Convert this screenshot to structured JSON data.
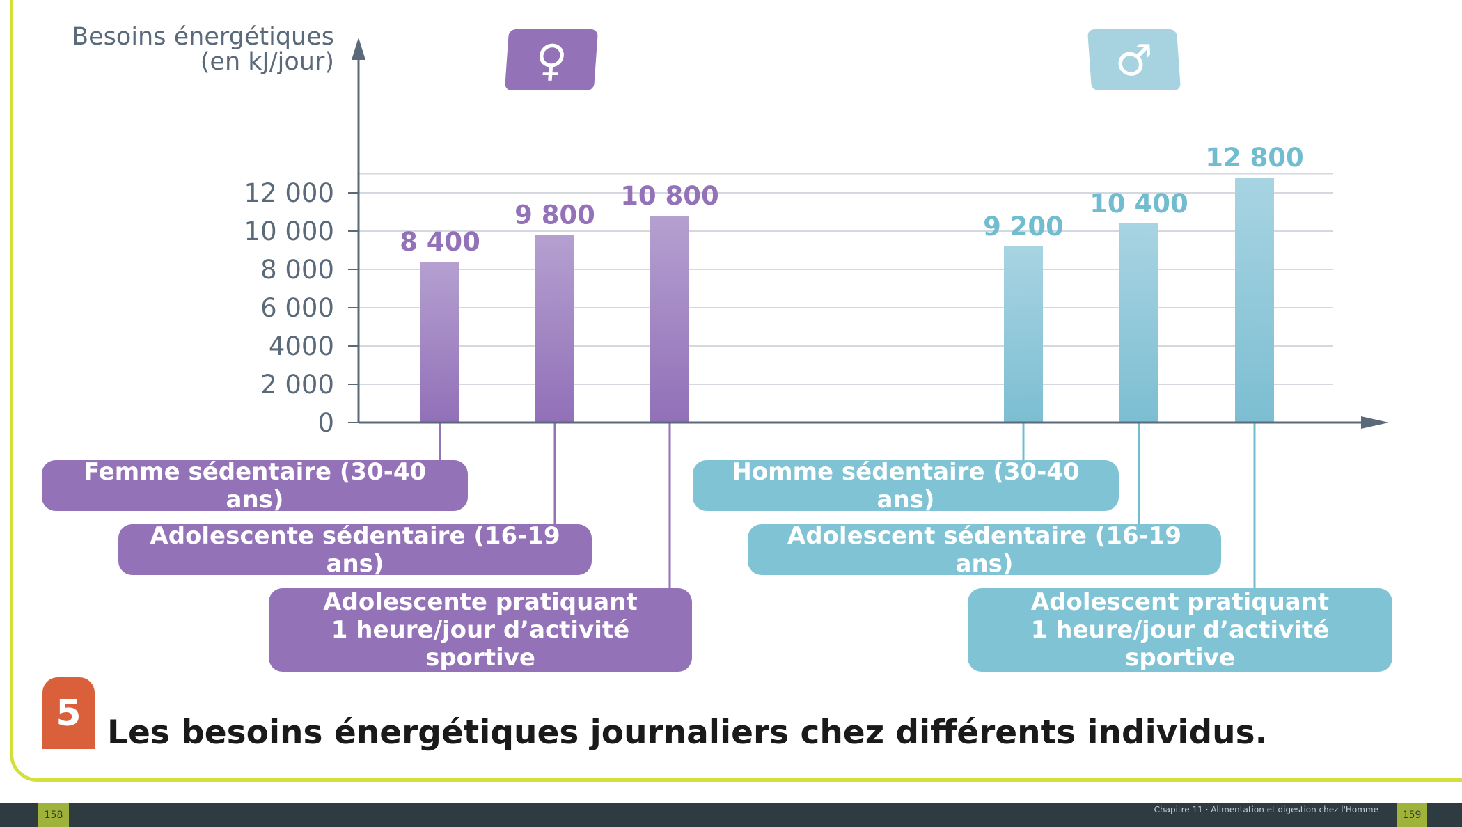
{
  "colors": {
    "female": "#9372b8",
    "male": "#7fc3d4",
    "axis": "#5b6a7a",
    "grid": "#d5d9df"
  },
  "axis": {
    "ytitle_line1": "Besoins énergétiques",
    "ytitle_line2": "(en kJ/jour)"
  },
  "badges": {
    "female_symbol": "♀",
    "male_symbol": "♂"
  },
  "figure": {
    "number": "5",
    "caption": "Les besoins énergétiques journaliers chez différents individus."
  },
  "footer": {
    "page_left": "158",
    "page_right": "159",
    "chapter": "Chapitre 11 · Alimentation et digestion chez l'Homme"
  },
  "chart_data": {
    "type": "bar",
    "ylabel": "Besoins énergétiques (en kJ/jour)",
    "ylim": [
      0,
      13000
    ],
    "yticks": [
      0,
      2000,
      4000,
      6000,
      8000,
      10000,
      12000
    ],
    "ytick_labels": [
      "0",
      "2 000",
      "4000",
      "6 000",
      "8 000",
      "10 000",
      "12 000"
    ],
    "grid": true,
    "categories": [
      "Femme sédentaire (30-40 ans)",
      "Adolescente sédentaire (16-19 ans)",
      "Adolescente pratiquant\n1 heure/jour d’activité sportive",
      "Homme sédentaire (30-40 ans)",
      "Adolescent sédentaire (16-19 ans)",
      "Adolescent pratiquant\n1 heure/jour d’activité sportive"
    ],
    "values": [
      8400,
      9800,
      10800,
      9200,
      10400,
      12800
    ],
    "value_labels": [
      "8 400",
      "9 800",
      "10 800",
      "9 200",
      "10 400",
      "12 800"
    ],
    "groups": [
      "female",
      "female",
      "female",
      "male",
      "male",
      "male"
    ]
  }
}
